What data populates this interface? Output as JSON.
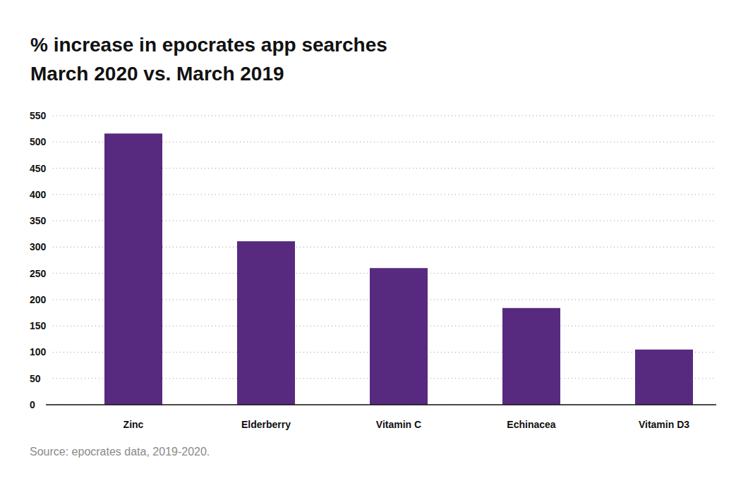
{
  "chart_data": {
    "type": "bar",
    "title": "% increase in epocrates app searches",
    "subtitle": "March 2020 vs. March 2019",
    "source": "Source: epocrates data, 2019-2020.",
    "categories": [
      "Zinc",
      "Elderberry",
      "Vitamin C",
      "Echinacea",
      "Vitamin D3"
    ],
    "values": [
      516,
      311,
      260,
      184,
      105
    ],
    "color": "#582a7f",
    "ylim": [
      0,
      550
    ],
    "yticks": [
      0,
      50,
      100,
      150,
      200,
      250,
      300,
      350,
      400,
      450,
      500,
      550
    ],
    "grid": true
  }
}
